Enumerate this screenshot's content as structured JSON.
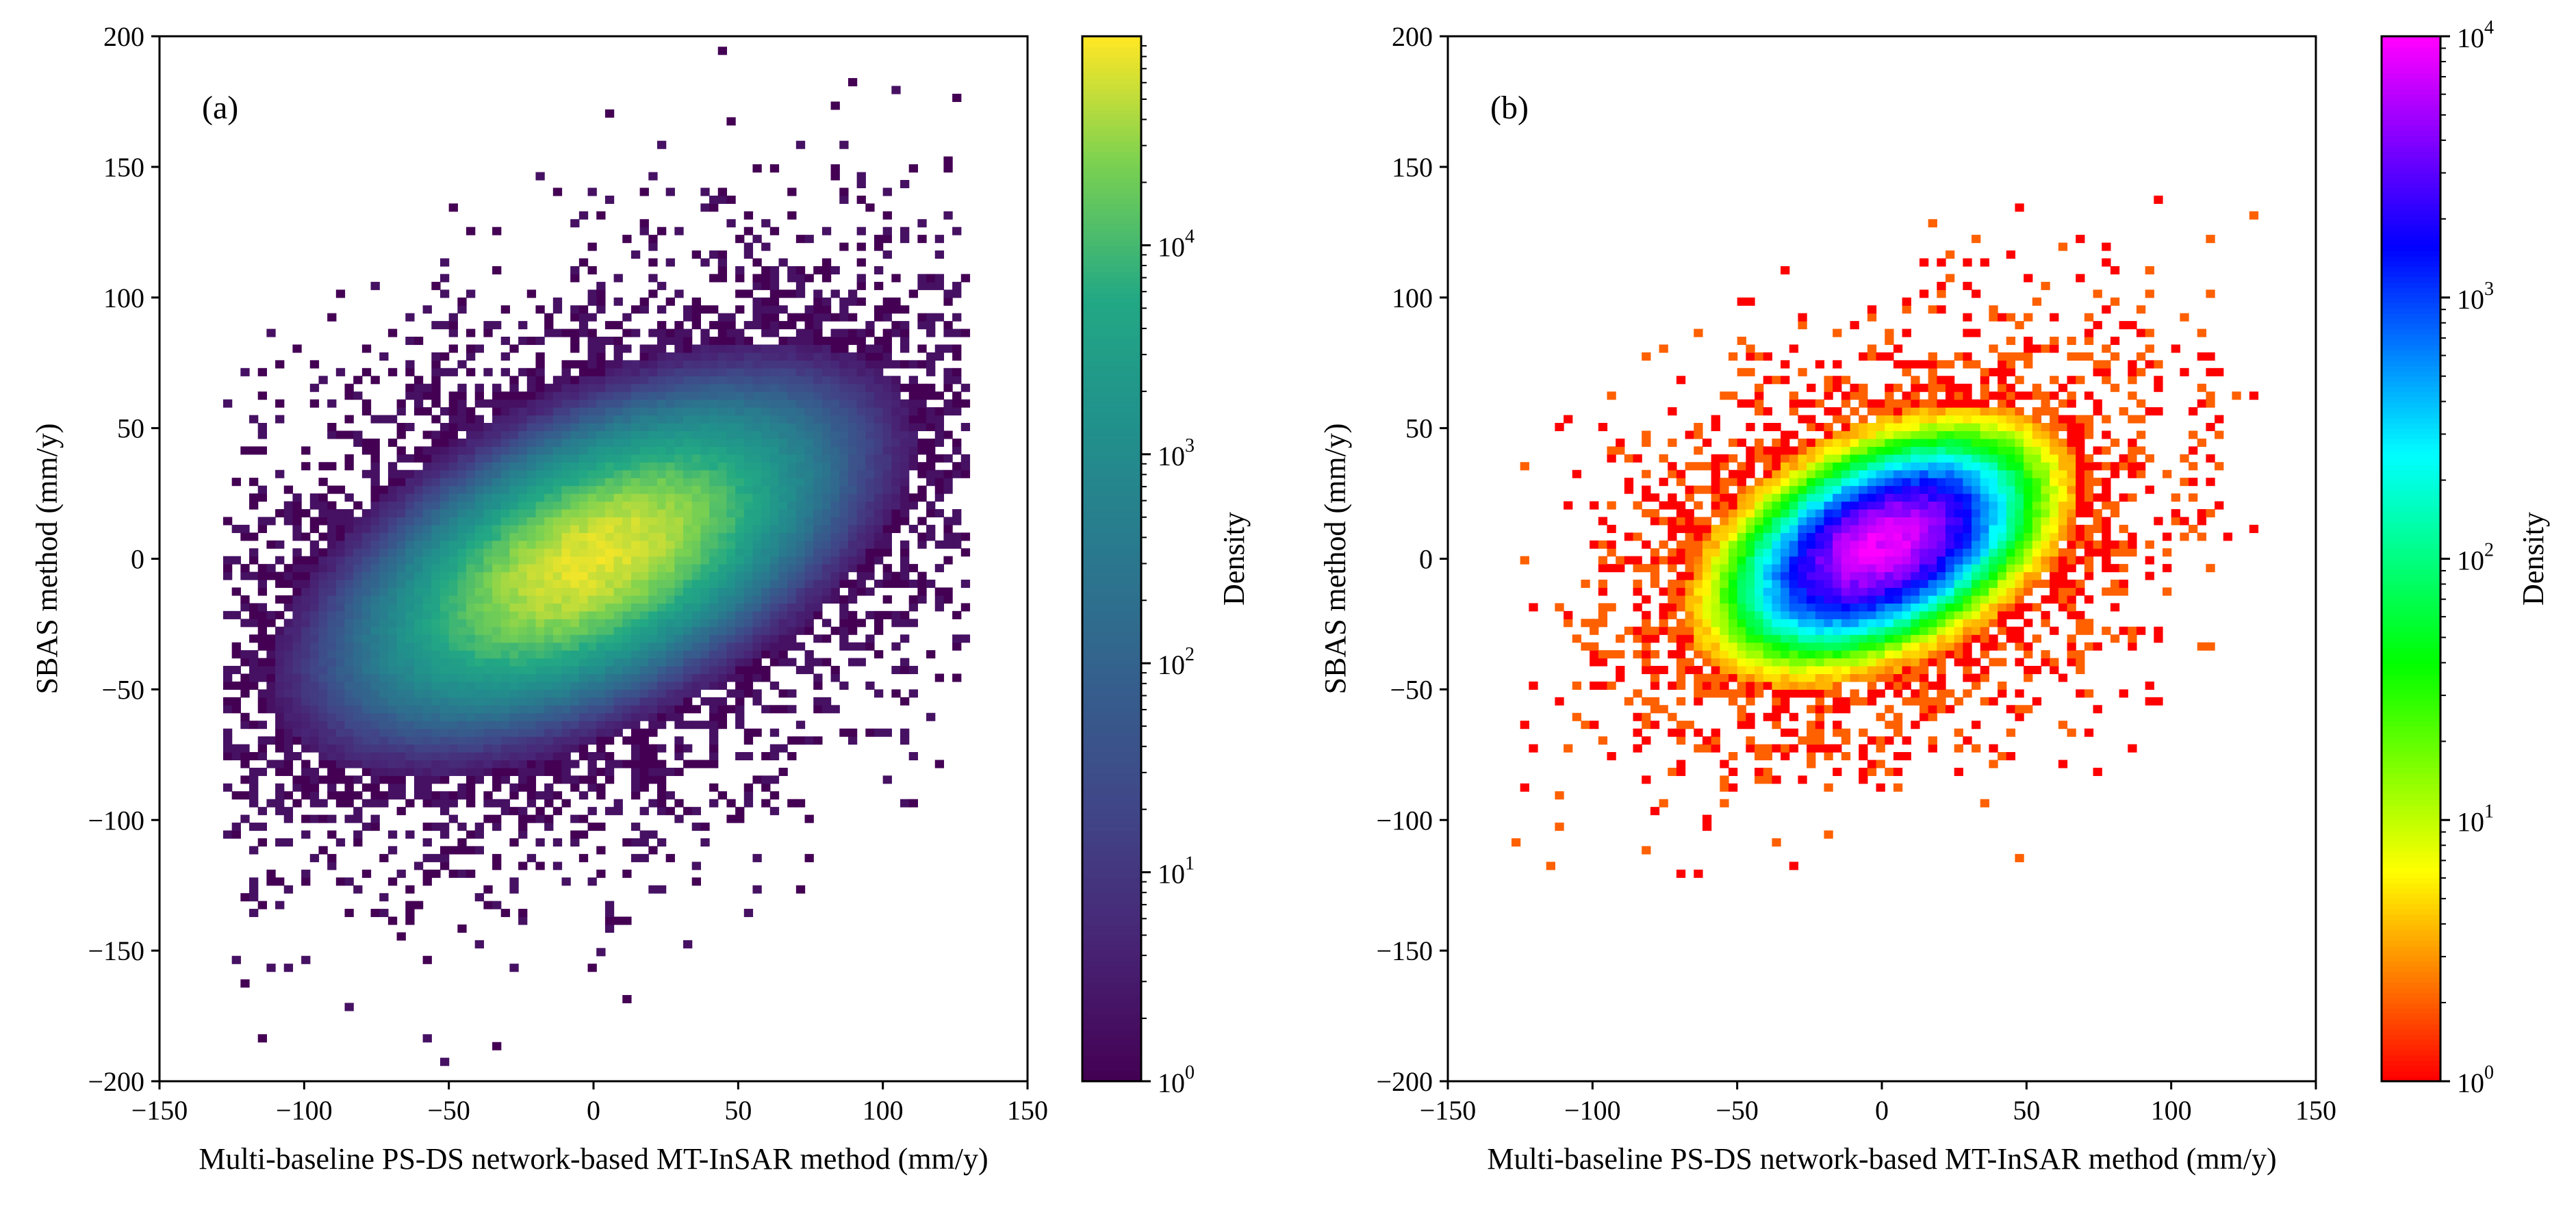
{
  "chart_data": [
    {
      "type": "heatmap",
      "panel_label": "(a)",
      "xlabel": "Multi-baseline PS-DS network-based MT-InSAR method (mm/y)",
      "ylabel": "SBAS method (mm/y)",
      "xlim": [
        -150,
        150
      ],
      "ylim": [
        -200,
        200
      ],
      "x_ticks": [
        -150,
        -100,
        -50,
        0,
        50,
        100,
        150
      ],
      "y_ticks": [
        -200,
        -150,
        -100,
        -50,
        0,
        50,
        100,
        150,
        200
      ],
      "x_tick_labels": [
        "−150",
        "−100",
        "−50",
        "0",
        "50",
        "100",
        "150"
      ],
      "y_tick_labels": [
        "−200",
        "−150",
        "−100",
        "−50",
        "0",
        "50",
        "100",
        "150",
        "200"
      ],
      "colormap": "viridis",
      "colorbar": {
        "label": "Density",
        "scale": "log",
        "range": [
          1,
          100000
        ],
        "ticks": [
          {
            "value": 1,
            "base": "10",
            "exp": "0"
          },
          {
            "value": 10,
            "base": "10",
            "exp": "1"
          },
          {
            "value": 100,
            "base": "10",
            "exp": "2"
          },
          {
            "value": 1000,
            "base": "10",
            "exp": "3"
          },
          {
            "value": 10000,
            "base": "10",
            "exp": "4"
          }
        ]
      },
      "bin_width": [
        3,
        3
      ],
      "x_data_range": [
        -128,
        128
      ],
      "density_model": {
        "center": [
          0,
          0
        ],
        "peak": 80000,
        "sigma_along": 26,
        "sigma_across": 13,
        "correlation_slope": 0.6,
        "sparse_tail": true
      }
    },
    {
      "type": "heatmap",
      "panel_label": "(b)",
      "xlabel": "Multi-baseline PS-DS network-based MT-InSAR method (mm/y)",
      "ylabel": "SBAS method (mm/y)",
      "xlim": [
        -150,
        150
      ],
      "ylim": [
        -200,
        200
      ],
      "x_ticks": [
        -150,
        -100,
        -50,
        0,
        50,
        100,
        150
      ],
      "y_ticks": [
        -200,
        -150,
        -100,
        -50,
        0,
        50,
        100,
        150,
        200
      ],
      "x_tick_labels": [
        "−150",
        "−100",
        "−50",
        "0",
        "50",
        "100",
        "150"
      ],
      "y_tick_labels": [
        "−200",
        "−150",
        "−100",
        "−50",
        "0",
        "50",
        "100",
        "150",
        "200"
      ],
      "colormap": "gist_rainbow",
      "colorbar": {
        "label": "Density",
        "scale": "log",
        "range": [
          1,
          10000
        ],
        "ticks": [
          {
            "value": 1,
            "base": "10",
            "exp": "0"
          },
          {
            "value": 10,
            "base": "10",
            "exp": "1"
          },
          {
            "value": 100,
            "base": "10",
            "exp": "2"
          },
          {
            "value": 1000,
            "base": "10",
            "exp": "3"
          },
          {
            "value": 10000,
            "base": "10",
            "exp": "4"
          }
        ]
      },
      "bin_width": [
        3,
        3
      ],
      "x_data_range": [
        -128,
        128
      ],
      "density_model": {
        "center": [
          0,
          5
        ],
        "peak": 9000,
        "sigma_along": 17,
        "sigma_across": 10,
        "correlation_slope": 0.6,
        "sparse_tail": true
      }
    }
  ]
}
